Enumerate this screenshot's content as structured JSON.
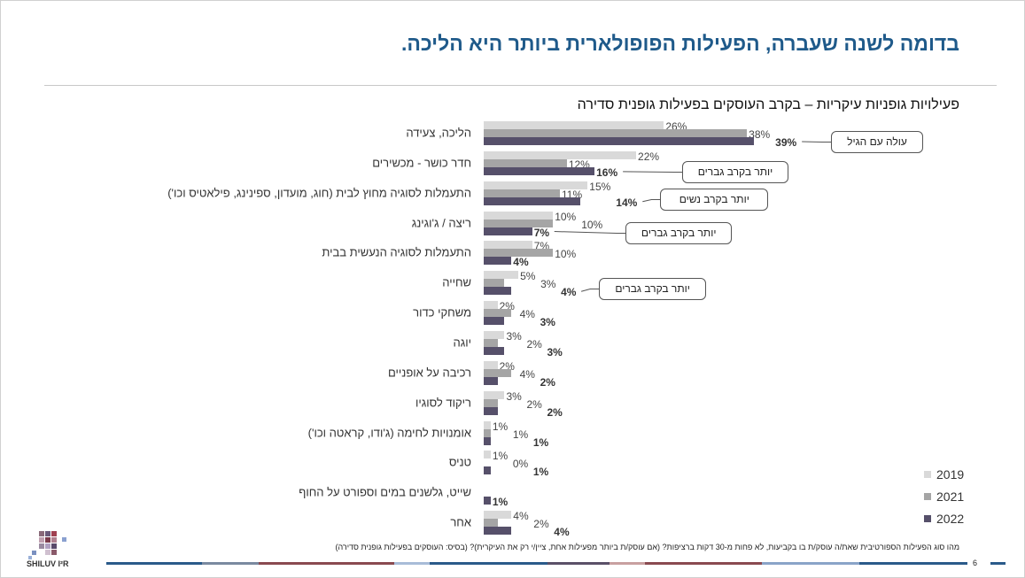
{
  "title": "בדומה לשנה שעברה, הפעילות הפופולארית ביותר היא הליכה.",
  "footnote": "מהו סוג הפעילות הספורטיבית שאת/ה עוסק/ת בו בקביעות, לא פחות מ-30 דקות ברציפות? (אם עוסק/ת ביותר מפעילות אחת, ציין/י רק את העיקרית)? (בסיס: העוסקים בפעילות גופנית סדירה)",
  "page_number": "6",
  "logo_text": "SHILUV I²R",
  "colors": {
    "title": "#1f5a8a",
    "s2019": "#d9d9d9",
    "s2021": "#a5a5a5",
    "s2022": "#56506a"
  },
  "chart_data": {
    "type": "bar",
    "orientation": "horizontal",
    "title": "פעילויות גופניות עיקריות – בקרב העוסקים בפעילות גופנית סדירה",
    "unit": "%",
    "legend_position": "bottom-right",
    "categories": [
      "הליכה, צעידה",
      "חדר כושר - מכשירים",
      "התעמלות לסוגיה מחוץ לבית (חוג, מועדון, ספינינג, פילאטיס וכו')",
      "ריצה / ג'וגינג",
      "התעמלות לסוגיה הנעשית בבית",
      "שחייה",
      "משחקי כדור",
      "יוגה",
      "רכיבה על אופניים",
      "ריקוד לסוגיו",
      "אומנויות לחימה (ג'ודו, קראטה וכו')",
      "טניס",
      "שייט, גלשנים במים וספורט על החוף",
      "אחר"
    ],
    "series": [
      {
        "name": "2019",
        "values": [
          26,
          22,
          15,
          10,
          7,
          5,
          2,
          3,
          2,
          3,
          1,
          1,
          null,
          4
        ]
      },
      {
        "name": "2021",
        "values": [
          38,
          12,
          11,
          10,
          10,
          3,
          4,
          2,
          4,
          2,
          1,
          0,
          null,
          2
        ]
      },
      {
        "name": "2022",
        "values": [
          39,
          16,
          14,
          7,
          4,
          4,
          3,
          3,
          2,
          2,
          1,
          1,
          1,
          4
        ]
      }
    ],
    "annotations": [
      {
        "text": "עולה עם הגיל",
        "category_index": 0
      },
      {
        "text": "יותר בקרב גברים",
        "category_index": 1
      },
      {
        "text": "יותר בקרב נשים",
        "category_index": 2
      },
      {
        "text": "יותר בקרב גברים",
        "category_index": 3
      },
      {
        "text": "יותר בקרב גברים",
        "category_index": 5
      }
    ]
  }
}
